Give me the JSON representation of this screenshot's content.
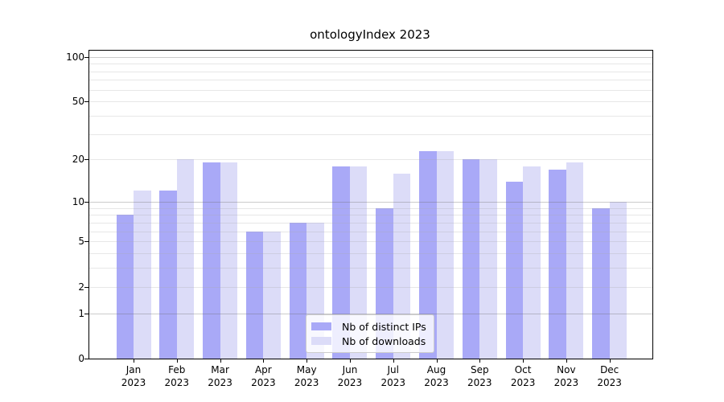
{
  "chart_data": {
    "type": "bar",
    "title": "ontologyIndex 2023",
    "categories": [
      {
        "month": "Jan",
        "year": "2023"
      },
      {
        "month": "Feb",
        "year": "2023"
      },
      {
        "month": "Mar",
        "year": "2023"
      },
      {
        "month": "Apr",
        "year": "2023"
      },
      {
        "month": "May",
        "year": "2023"
      },
      {
        "month": "Jun",
        "year": "2023"
      },
      {
        "month": "Jul",
        "year": "2023"
      },
      {
        "month": "Aug",
        "year": "2023"
      },
      {
        "month": "Sep",
        "year": "2023"
      },
      {
        "month": "Oct",
        "year": "2023"
      },
      {
        "month": "Nov",
        "year": "2023"
      },
      {
        "month": "Dec",
        "year": "2023"
      }
    ],
    "series": [
      {
        "name": "Nb of distinct IPs",
        "color": "#a9a9f7",
        "values": [
          8,
          12,
          19,
          6,
          7,
          18,
          9,
          23,
          20,
          14,
          17,
          9
        ]
      },
      {
        "name": "Nb of downloads",
        "color": "#dcdcf8",
        "values": [
          12,
          20,
          19,
          6,
          7,
          18,
          16,
          23,
          20,
          18,
          19,
          10
        ]
      }
    ],
    "yscale": "log1p",
    "ylim": [
      0,
      110
    ],
    "y_major_ticks": [
      0,
      1,
      2,
      5,
      10,
      20,
      50,
      100
    ],
    "y_major_gridlines": [
      1,
      10,
      100
    ],
    "y_minor_gridlines": [
      2,
      3,
      4,
      5,
      6,
      7,
      8,
      9,
      20,
      30,
      40,
      50,
      60,
      70,
      80,
      90
    ],
    "grid": true,
    "legend_position": "lower center"
  }
}
